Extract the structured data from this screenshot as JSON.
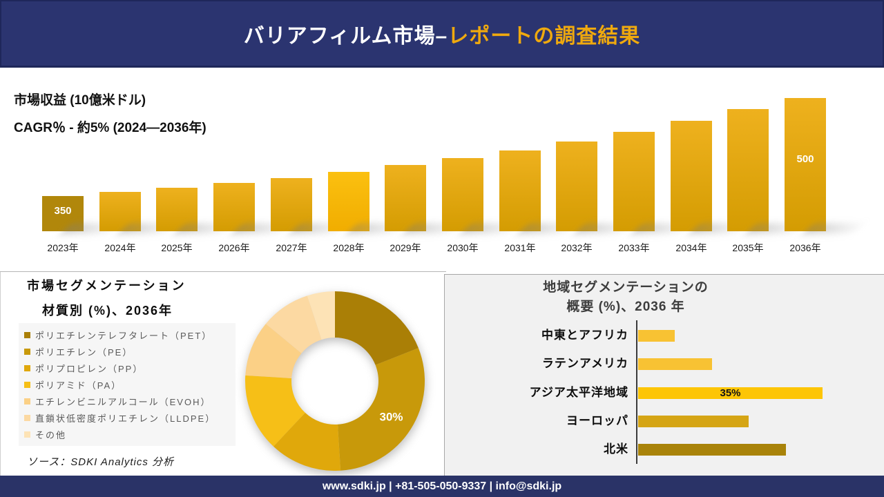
{
  "header": {
    "title_white": "バリアフィルム市場–",
    "title_gold": "レポートの調査結果"
  },
  "revenue": {
    "label_line1": "市場収益 (10億米ドル)",
    "label_line2": "CAGR％ - 約5% (2024―2036年)"
  },
  "segmentation": {
    "title_line1": "市場セグメンテーション",
    "title_line2": "材質別 (%)、2036年",
    "source": "ソース：SDKI Analytics 分析"
  },
  "regional": {
    "title_line1": "地域セグメンテーションの",
    "title_line2": "概要 (%)、2036 年"
  },
  "footer": {
    "text": "www.sdki.jp | +81-505-050-9337 | info@sdki.jp"
  },
  "chart_data": [
    {
      "type": "bar",
      "title": "市場収益 (10億米ドル)",
      "subtitle": "CAGR％ - 約5% (2024―2036年)",
      "categories": [
        "2023年",
        "2024年",
        "2025年",
        "2026年",
        "2027年",
        "2028年",
        "2029年",
        "2030年",
        "2031年",
        "2032年",
        "2033年",
        "2034年",
        "2035年",
        "2036年"
      ],
      "values": [
        350,
        356,
        363,
        370,
        378,
        387,
        398,
        408,
        420,
        434,
        449,
        466,
        484,
        500
      ],
      "ylim": [
        350,
        500
      ],
      "labeled_points": {
        "2023年": "350",
        "2036年": "500"
      },
      "bar_color_first": "#b1870b",
      "bar_color_default": [
        "#eeb11e",
        "#d49c02"
      ],
      "bar_color_bright": [
        "#fbc010",
        "#f1ad00"
      ],
      "bright_year": "2028年",
      "grid": false
    },
    {
      "type": "pie",
      "donut": true,
      "title": "市場セグメンテーション 材質別 (%)、2036年",
      "labels": [
        "ポリエチレンテレフタレート（PET）",
        "ポリエチレン（PE）",
        "ポリプロピレン（PP）",
        "ポリアミド（PA）",
        "エチレンビニルアルコール（EVOH）",
        "直鎖状低密度ポリエチレン（LLDPE）",
        "その他"
      ],
      "values": [
        19,
        30,
        13,
        14,
        10,
        9,
        5
      ],
      "colors": [
        "#aa7f06",
        "#c8990a",
        "#e0a80b",
        "#f6bf17",
        "#fbd086",
        "#fcd9a2",
        "#fde3b6"
      ],
      "labeled_slice": {
        "index": 1,
        "text": "30%"
      },
      "legend_position": "left"
    },
    {
      "type": "bar",
      "orientation": "horizontal",
      "title": "地域セグメンテーションの概要 (%)、2036 年",
      "categories": [
        "中東とアフリカ",
        "ラテンアメリカ",
        "アジア太平洋地域",
        "ヨーロッパ",
        "北米"
      ],
      "values": [
        7,
        14,
        35,
        21,
        28
      ],
      "colors": [
        "#f8c233",
        "#f8c233",
        "#fdc505",
        "#d5a515",
        "#a9830a"
      ],
      "labeled_point": {
        "category": "アジア太平洋地域",
        "text": "35%"
      },
      "xlim": [
        0,
        38
      ],
      "grid": false
    }
  ]
}
